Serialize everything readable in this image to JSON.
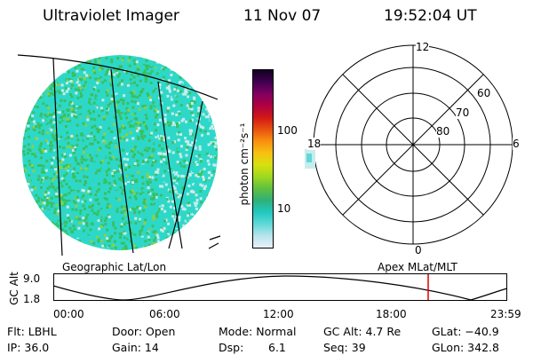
{
  "header": {
    "instrument": "Ultraviolet Imager",
    "date": "11 Nov 07",
    "time": "19:52:04 UT"
  },
  "colorbar": {
    "unit_label": "photon cm⁻²s⁻¹",
    "tick_100": "100",
    "tick_10": "10",
    "colors": [
      "#e8f0f8",
      "#b8e4ec",
      "#60d8d8",
      "#20c8c0",
      "#30b078",
      "#60c040",
      "#a0d820",
      "#d8e010",
      "#f8c010",
      "#f89010",
      "#e85010",
      "#d01818",
      "#b00040",
      "#800060",
      "#400050",
      "#100020"
    ]
  },
  "globe_panel": {
    "label": "Geographic Lat/Lon",
    "colors": {
      "cyan": "#2ed8c8",
      "green": "#38c060",
      "light": "#c8ecec",
      "lime": "#90d040"
    }
  },
  "polar_panel": {
    "label": "Apex MLat/MLT",
    "mlt_top": "12",
    "mlt_bottom": "0",
    "mlt_left": "18",
    "mlt_right": "6",
    "lat_60": "60",
    "lat_70": "70",
    "lat_80": "80"
  },
  "altitude_plot": {
    "axis_label": "GC Alt",
    "y_top": "9.0",
    "y_bottom": "1.8",
    "x_ticks": [
      "00:00",
      "06:00",
      "12:00",
      "18:00",
      "23:59"
    ],
    "current_time_color": "#e00000"
  },
  "info": {
    "filter": "Flt: LBHL",
    "ip": "IP: 36.0",
    "door": "Door: Open",
    "gain": "Gain: 14",
    "mode": "Mode: Normal",
    "dsp_label": "Dsp:",
    "dsp_value": "6.1",
    "gc_alt": "GC Alt: 4.7 Re",
    "seq": "Seq: 39",
    "glat": "GLat: −40.9",
    "glon": "GLon: 342.8"
  }
}
